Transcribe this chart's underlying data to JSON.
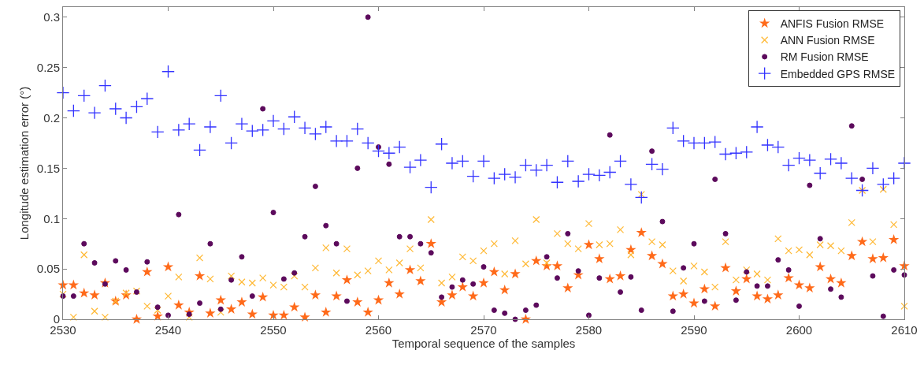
{
  "chart_data": {
    "type": "scatter",
    "xlabel": "Temporal sequence of the samples",
    "ylabel": "Longitude estimation error (°)",
    "x": [
      2530,
      2531,
      2532,
      2533,
      2534,
      2535,
      2536,
      2537,
      2538,
      2539,
      2540,
      2541,
      2542,
      2543,
      2544,
      2545,
      2546,
      2547,
      2548,
      2549,
      2550,
      2551,
      2552,
      2553,
      2554,
      2555,
      2556,
      2557,
      2558,
      2559,
      2560,
      2561,
      2562,
      2563,
      2564,
      2565,
      2566,
      2567,
      2568,
      2569,
      2570,
      2571,
      2572,
      2573,
      2574,
      2575,
      2576,
      2577,
      2578,
      2579,
      2580,
      2581,
      2582,
      2583,
      2584,
      2585,
      2586,
      2587,
      2588,
      2589,
      2590,
      2591,
      2592,
      2593,
      2594,
      2595,
      2596,
      2597,
      2598,
      2599,
      2600,
      2601,
      2602,
      2603,
      2604,
      2605,
      2606,
      2607,
      2608,
      2609,
      2610
    ],
    "xlim": [
      2530,
      2610
    ],
    "xticks": [
      2530,
      2540,
      2550,
      2560,
      2570,
      2580,
      2590,
      2600,
      2610
    ],
    "ylim": [
      0,
      0.31
    ],
    "yticks": [
      0,
      0.05,
      0.1,
      0.15,
      0.2,
      0.25,
      0.3
    ],
    "legend": "top right",
    "series": [
      {
        "name": "ANFIS Fusion RMSE",
        "color": "#ff6a1a",
        "marker": "star",
        "values": [
          0.034,
          0.034,
          0.026,
          0.024,
          0.036,
          0.018,
          0.024,
          0.0,
          0.047,
          0.003,
          0.052,
          0.014,
          0.007,
          0.043,
          0.006,
          0.019,
          0.01,
          0.017,
          0.005,
          0.022,
          0.004,
          0.004,
          0.012,
          0.002,
          0.024,
          0.007,
          0.023,
          0.039,
          0.017,
          0.007,
          0.019,
          0.036,
          0.025,
          0.049,
          0.038,
          0.075,
          0.017,
          0.024,
          0.032,
          0.023,
          0.036,
          0.047,
          0.029,
          0.045,
          0.0,
          0.058,
          0.053,
          0.053,
          0.031,
          0.044,
          0.074,
          0.06,
          0.04,
          0.043,
          0.069,
          0.086,
          0.063,
          0.055,
          0.023,
          0.025,
          0.016,
          0.03,
          0.013,
          0.051,
          0.028,
          0.04,
          0.023,
          0.02,
          0.024,
          0.041,
          0.034,
          0.031,
          0.052,
          0.04,
          0.036,
          0.063,
          0.077,
          0.06,
          0.061,
          0.079,
          0.053
        ]
      },
      {
        "name": "ANN Fusion RMSE",
        "color": "#ffb833",
        "marker": "x",
        "values": [
          0.025,
          0.002,
          0.064,
          0.008,
          0.002,
          0.018,
          0.026,
          0.028,
          0.013,
          0.009,
          0.023,
          0.042,
          0.002,
          0.061,
          0.04,
          0.007,
          0.043,
          0.037,
          0.036,
          0.041,
          0.034,
          0.032,
          0.043,
          0.032,
          0.051,
          0.071,
          0.046,
          0.07,
          0.044,
          0.048,
          0.058,
          0.049,
          0.056,
          0.07,
          0.051,
          0.099,
          0.036,
          0.042,
          0.062,
          0.058,
          0.068,
          0.075,
          0.045,
          0.078,
          0.055,
          0.099,
          0.056,
          0.085,
          0.075,
          0.07,
          0.095,
          0.074,
          0.075,
          0.089,
          0.064,
          0.124,
          0.077,
          0.074,
          0.048,
          0.038,
          0.053,
          0.047,
          0.032,
          0.077,
          0.039,
          0.049,
          0.045,
          0.039,
          0.08,
          0.068,
          0.069,
          0.064,
          0.074,
          0.073,
          0.068,
          0.096,
          0.128,
          0.077,
          0.129,
          0.094,
          0.013
        ]
      },
      {
        "name": "RM Fusion RMSE",
        "color": "#5c0a5c",
        "marker": "circle",
        "values": [
          0.023,
          0.023,
          0.075,
          0.056,
          0.035,
          0.058,
          0.049,
          0.027,
          0.057,
          0.012,
          0.004,
          0.104,
          0.005,
          0.016,
          0.075,
          0.01,
          0.039,
          0.062,
          0.023,
          0.209,
          0.106,
          0.04,
          0.046,
          0.082,
          0.132,
          0.093,
          0.075,
          0.018,
          0.15,
          0.3,
          0.171,
          0.154,
          0.082,
          0.082,
          0.075,
          0.066,
          0.022,
          0.032,
          0.039,
          0.035,
          0.052,
          0.009,
          0.006,
          0.0,
          0.009,
          0.014,
          0.062,
          0.041,
          0.085,
          0.048,
          0.004,
          0.041,
          0.183,
          0.027,
          0.042,
          0.009,
          0.167,
          0.097,
          0.008,
          0.051,
          0.075,
          0.018,
          0.139,
          0.085,
          0.019,
          0.047,
          0.033,
          0.033,
          0.059,
          0.049,
          0.013,
          0.133,
          0.08,
          0.03,
          0.022,
          0.192,
          0.139,
          0.043,
          0.003,
          0.049,
          0.044
        ]
      },
      {
        "name": "Embedded GPS RMSE",
        "color": "#3333ff",
        "marker": "cross",
        "values": [
          0.225,
          0.207,
          0.222,
          0.205,
          0.232,
          0.209,
          0.2,
          0.211,
          0.219,
          0.186,
          0.246,
          0.188,
          0.194,
          0.168,
          0.191,
          0.222,
          0.175,
          0.194,
          0.187,
          0.188,
          0.197,
          0.189,
          0.201,
          0.19,
          0.184,
          0.191,
          0.177,
          0.177,
          0.189,
          0.175,
          0.167,
          0.165,
          0.171,
          0.151,
          0.158,
          0.131,
          0.174,
          0.155,
          0.157,
          0.142,
          0.157,
          0.14,
          0.144,
          0.141,
          0.153,
          0.148,
          0.153,
          0.136,
          0.157,
          0.137,
          0.144,
          0.143,
          0.146,
          0.157,
          0.134,
          0.121,
          0.154,
          0.149,
          0.19,
          0.177,
          0.175,
          0.175,
          0.176,
          0.164,
          0.165,
          0.166,
          0.191,
          0.173,
          0.171,
          0.153,
          0.16,
          0.158,
          0.145,
          0.159,
          0.155,
          0.14,
          0.128,
          0.15,
          0.134,
          0.14,
          0.155
        ]
      }
    ]
  }
}
